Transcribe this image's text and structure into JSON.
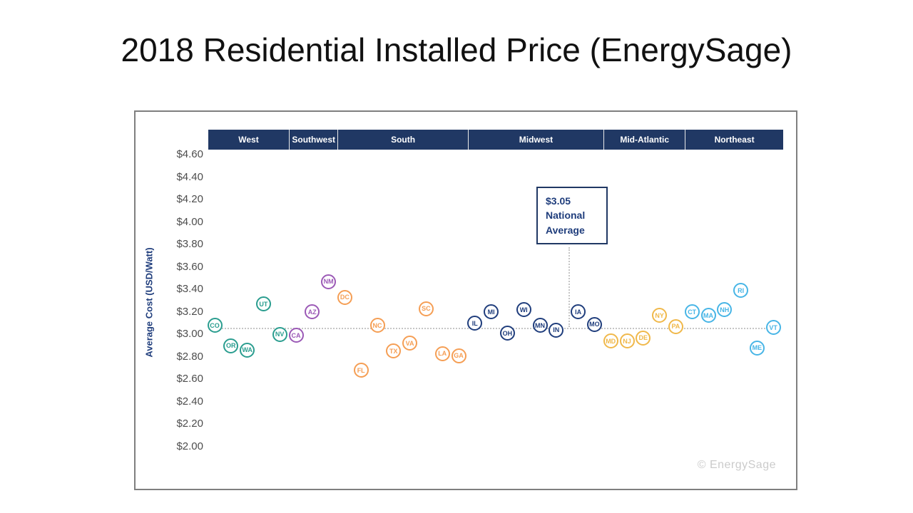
{
  "page_title": "2018 Residential Installed Price (EnergySage)",
  "watermark": "© EnergySage",
  "chart_data": {
    "type": "scatter",
    "title": "2018 Residential Installed Price (EnergySage)",
    "ylabel": "Average Cost (USD/Watt)",
    "ylim": [
      2.0,
      4.6
    ],
    "ytick_step": 0.2,
    "yticks": [
      "$4.60",
      "$4.40",
      "$4.20",
      "$4.00",
      "$3.80",
      "$3.60",
      "$3.40",
      "$3.20",
      "$3.00",
      "$2.80",
      "$2.60",
      "$2.40",
      "$2.20",
      "$2.00"
    ],
    "grid": false,
    "header_bg": "#203864",
    "line_color": "#c6c6c6",
    "national_average": {
      "value": 3.05,
      "annotation_lines": [
        "$3.05",
        "National",
        "Average"
      ]
    },
    "gap_before_state": "IA",
    "regions": [
      {
        "name": "West",
        "color": "#2a9d8f",
        "states": [
          {
            "code": "CO",
            "value": 3.08
          },
          {
            "code": "OR",
            "value": 2.9
          },
          {
            "code": "WA",
            "value": 2.86
          },
          {
            "code": "UT",
            "value": 3.27
          },
          {
            "code": "NV",
            "value": 3.0
          }
        ]
      },
      {
        "name": "Southwest",
        "color": "#9b59b6",
        "states": [
          {
            "code": "CA",
            "value": 2.99
          },
          {
            "code": "AZ",
            "value": 3.2
          },
          {
            "code": "NM",
            "value": 3.47
          }
        ]
      },
      {
        "name": "South",
        "color": "#f59e54",
        "states": [
          {
            "code": "DC",
            "value": 3.33
          },
          {
            "code": "FL",
            "value": 2.68
          },
          {
            "code": "NC",
            "value": 3.08
          },
          {
            "code": "TX",
            "value": 2.85
          },
          {
            "code": "VA",
            "value": 2.92
          },
          {
            "code": "SC",
            "value": 3.23
          },
          {
            "code": "LA",
            "value": 2.83
          },
          {
            "code": "GA",
            "value": 2.81
          }
        ]
      },
      {
        "name": "Midwest",
        "color": "#1f3d7c",
        "states": [
          {
            "code": "IL",
            "value": 3.1
          },
          {
            "code": "MI",
            "value": 3.2
          },
          {
            "code": "OH",
            "value": 3.01
          },
          {
            "code": "WI",
            "value": 3.22
          },
          {
            "code": "MN",
            "value": 3.08
          },
          {
            "code": "IN",
            "value": 3.04
          },
          {
            "code": "IA",
            "value": 3.2
          },
          {
            "code": "MO",
            "value": 3.09
          }
        ]
      },
      {
        "name": "Mid-Atlantic",
        "color": "#f0b84a",
        "states": [
          {
            "code": "MD",
            "value": 2.94
          },
          {
            "code": "NJ",
            "value": 2.94
          },
          {
            "code": "DE",
            "value": 2.97
          },
          {
            "code": "NY",
            "value": 3.17
          },
          {
            "code": "PA",
            "value": 3.07
          }
        ]
      },
      {
        "name": "Northeast",
        "color": "#47b5e6",
        "states": [
          {
            "code": "CT",
            "value": 3.2
          },
          {
            "code": "MA",
            "value": 3.17
          },
          {
            "code": "NH",
            "value": 3.22
          },
          {
            "code": "RI",
            "value": 3.39
          },
          {
            "code": "ME",
            "value": 2.88
          },
          {
            "code": "VT",
            "value": 3.06
          }
        ]
      }
    ]
  }
}
